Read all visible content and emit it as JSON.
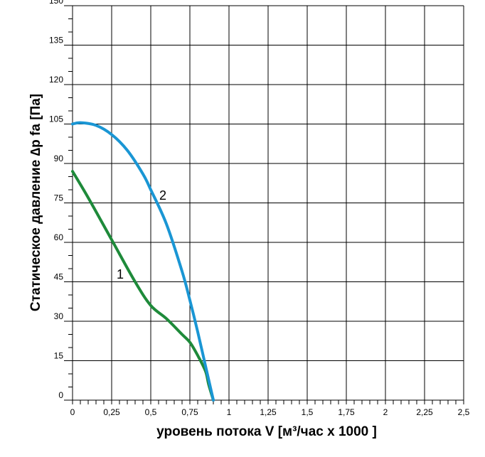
{
  "chart_data": {
    "type": "line",
    "title": "",
    "xlabel": "уровень потока  V [м³/час x 1000 ]",
    "ylabel": "Статическое давление  ∆p fa [Па]",
    "xlim": [
      0,
      2.5
    ],
    "ylim": [
      0,
      150
    ],
    "grid": true,
    "x_ticks": [
      0,
      0.25,
      0.5,
      0.75,
      1,
      1.25,
      1.5,
      1.75,
      2,
      2.25,
      2.5
    ],
    "x_tick_labels": [
      "0",
      "0,25",
      "0,5",
      "0,75",
      "1",
      "1,25",
      "1,5",
      "1,75",
      "2",
      "2,25",
      "2,5"
    ],
    "y_ticks": [
      0,
      15,
      30,
      45,
      60,
      75,
      90,
      105,
      120,
      135,
      150
    ],
    "y_tick_labels": [
      "0",
      "15",
      "30",
      "45",
      "60",
      "75",
      "90",
      "105",
      "120",
      "135",
      "150"
    ],
    "series": [
      {
        "name": "1",
        "color": "#1e8a3a",
        "x": [
          0,
          0.1,
          0.25,
          0.4,
          0.5,
          0.6,
          0.7,
          0.75,
          0.8,
          0.85,
          0.87,
          0.9
        ],
        "y": [
          87,
          77,
          61,
          45,
          36,
          31,
          25,
          22,
          17,
          11,
          6,
          0
        ]
      },
      {
        "name": "2",
        "color": "#1a96d4",
        "x": [
          0,
          0.05,
          0.15,
          0.25,
          0.35,
          0.45,
          0.5,
          0.6,
          0.7,
          0.75,
          0.8,
          0.85,
          0.9
        ],
        "y": [
          105,
          105.5,
          104.5,
          101,
          95,
          86,
          80,
          67,
          49,
          38,
          26,
          13,
          0
        ]
      }
    ]
  }
}
